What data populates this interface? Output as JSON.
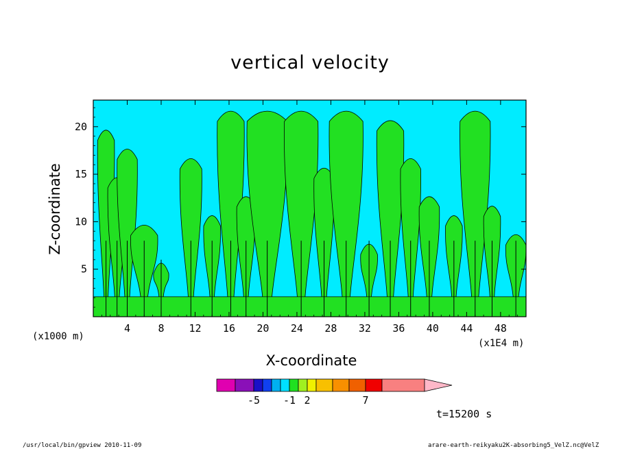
{
  "chart_data": {
    "type": "heatmap",
    "title": "vertical velocity",
    "xlabel": "X-coordinate",
    "ylabel": "Z-coordinate",
    "x_unit_label": "(x1E4 m)",
    "y_unit_label": "(x1000 m)",
    "x_ticks": [
      4,
      8,
      12,
      16,
      20,
      24,
      28,
      32,
      36,
      40,
      44,
      48
    ],
    "y_ticks": [
      5,
      10,
      15,
      20
    ],
    "xlim": [
      0,
      51
    ],
    "ylim": [
      0,
      22.8
    ],
    "time_label": "t=15200 s",
    "colorbar": {
      "colors": [
        "#e000b0",
        "#8a10b8",
        "#1a10c8",
        "#1040f0",
        "#00b0f0",
        "#00e0ff",
        "#20e020",
        "#a0f020",
        "#f0f000",
        "#f8c000",
        "#f89000",
        "#f06000",
        "#f00000",
        "#f88080",
        "#ffb8c8"
      ],
      "tick_labels": [
        "-5",
        "-1",
        "2",
        "7"
      ],
      "tick_values": [
        -5,
        -1,
        2,
        7
      ]
    },
    "columns": [
      {
        "x": 1.5,
        "top": 20,
        "w": 0.5
      },
      {
        "x": 2.8,
        "top": 15,
        "w": 0.55
      },
      {
        "x": 4.0,
        "top": 18,
        "w": 0.6
      },
      {
        "x": 6.0,
        "top": 10,
        "w": 0.8
      },
      {
        "x": 8.0,
        "top": 6,
        "w": 0.45
      },
      {
        "x": 11.5,
        "top": 17,
        "w": 0.65
      },
      {
        "x": 14.0,
        "top": 11,
        "w": 0.5
      },
      {
        "x": 16.2,
        "top": 22,
        "w": 0.8
      },
      {
        "x": 18.0,
        "top": 13,
        "w": 0.55
      },
      {
        "x": 20.5,
        "top": 22,
        "w": 1.2
      },
      {
        "x": 24.5,
        "top": 22,
        "w": 1.0
      },
      {
        "x": 27.2,
        "top": 16,
        "w": 0.6
      },
      {
        "x": 29.8,
        "top": 22,
        "w": 1.0
      },
      {
        "x": 32.5,
        "top": 8,
        "w": 0.5
      },
      {
        "x": 35.0,
        "top": 21,
        "w": 0.8
      },
      {
        "x": 37.4,
        "top": 17,
        "w": 0.6
      },
      {
        "x": 39.6,
        "top": 13,
        "w": 0.6
      },
      {
        "x": 42.5,
        "top": 11,
        "w": 0.5
      },
      {
        "x": 45.0,
        "top": 22,
        "w": 0.9
      },
      {
        "x": 47.0,
        "top": 12,
        "w": 0.5
      },
      {
        "x": 49.8,
        "top": 9,
        "w": 0.6
      }
    ]
  },
  "footer": {
    "left": "/usr/local/bin/gpview  2010-11-09",
    "right": "arare-earth-reikyaku2K-absorbing5_VelZ.nc@VelZ"
  }
}
